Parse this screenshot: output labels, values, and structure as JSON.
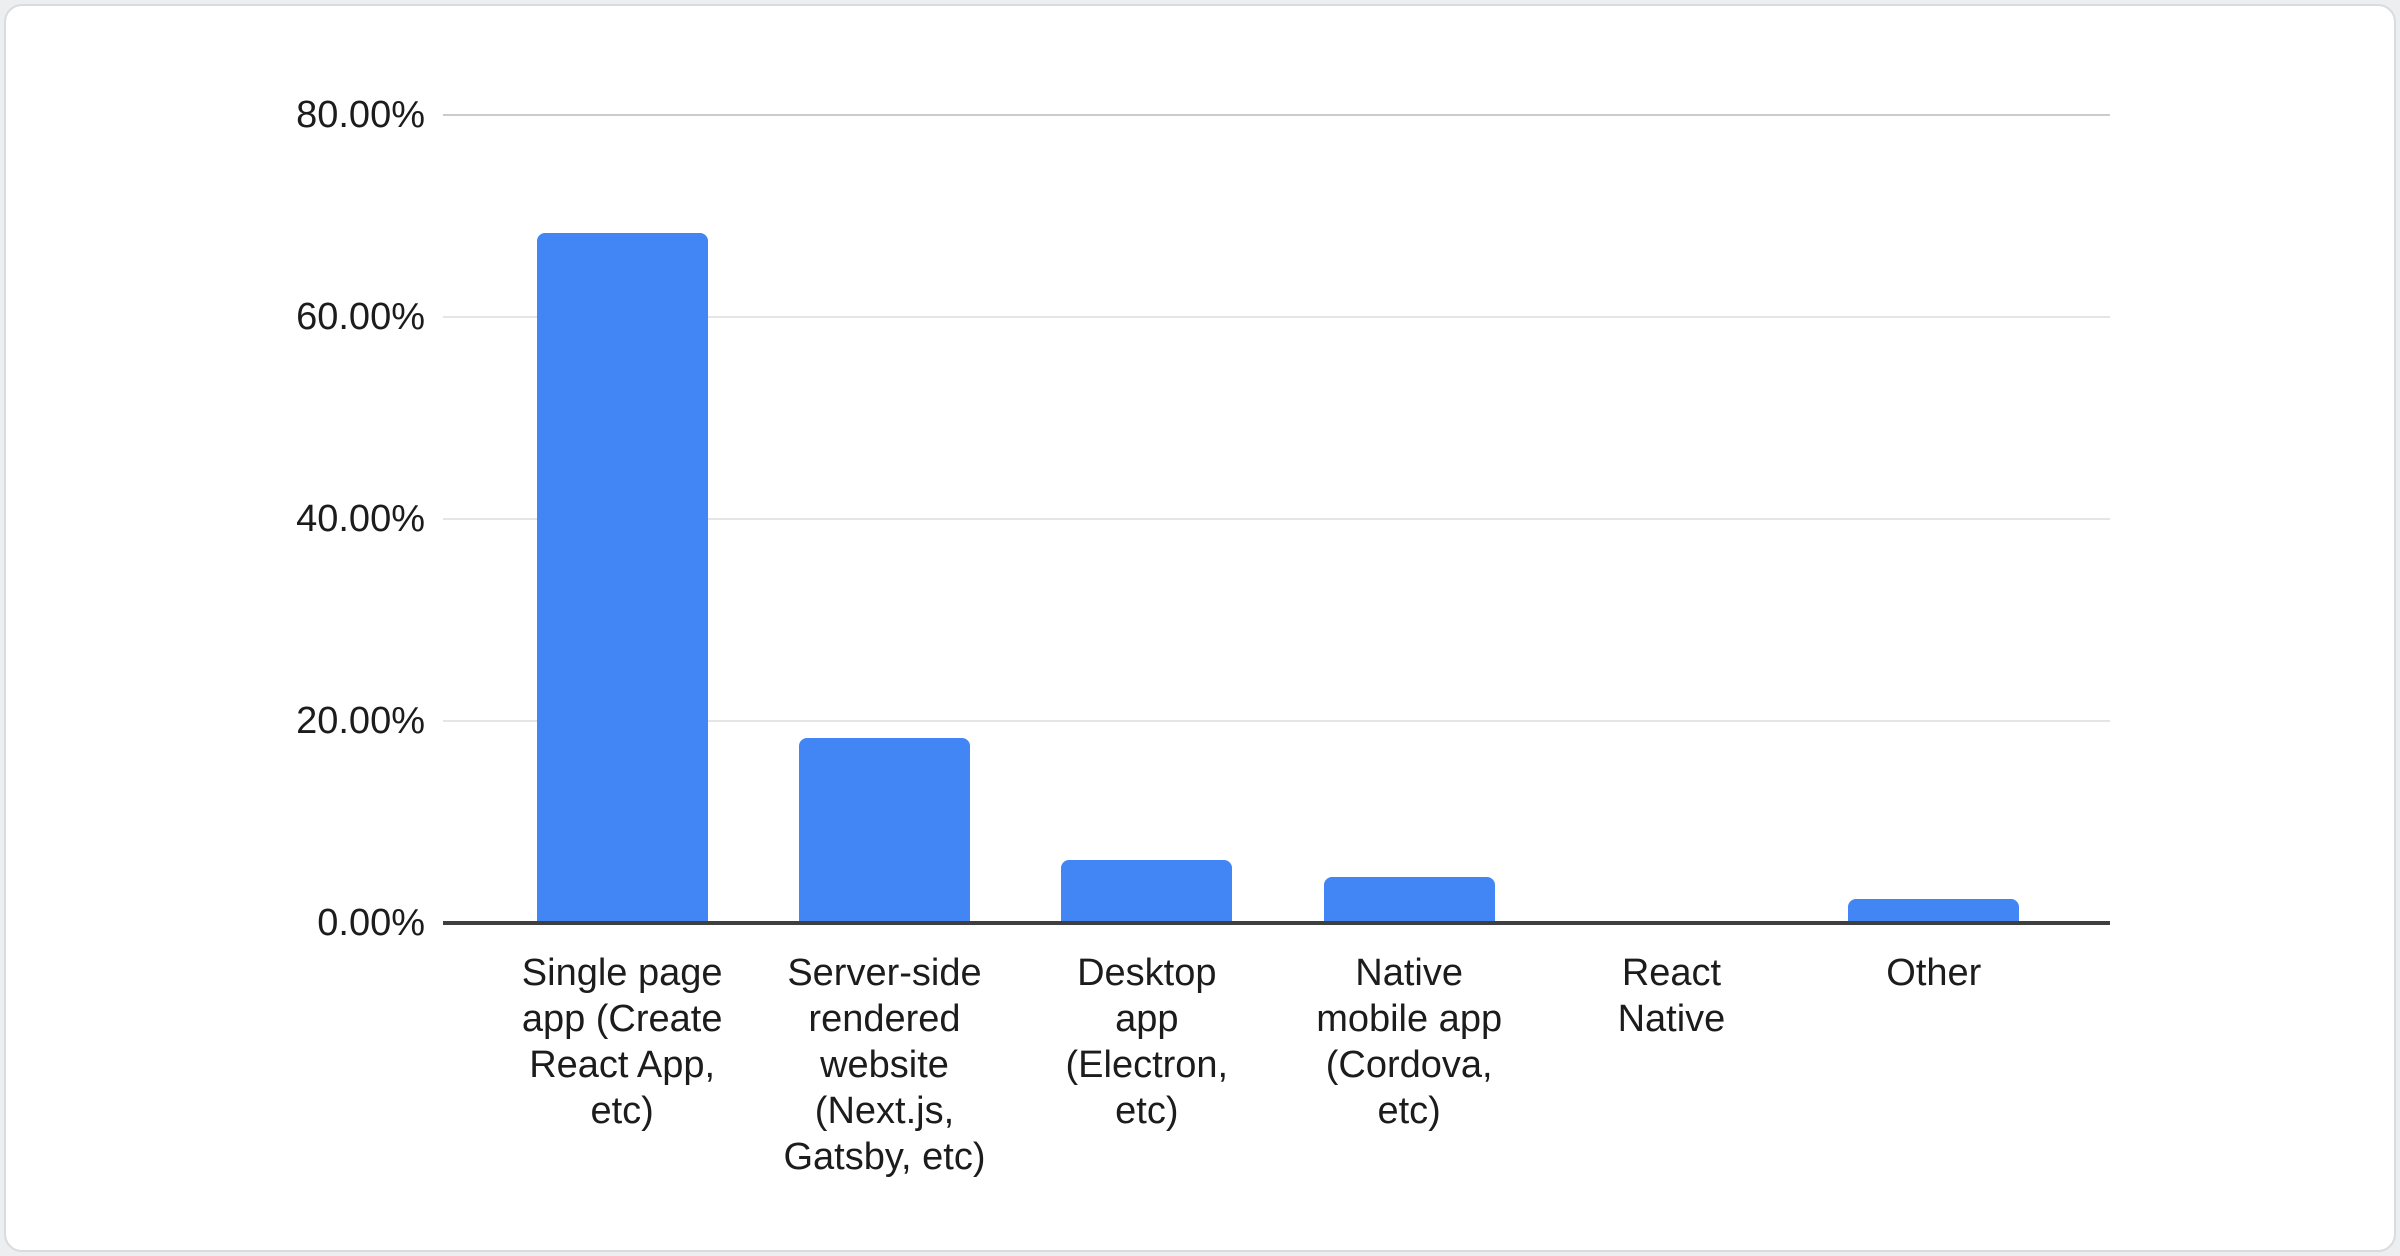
{
  "chart_data": {
    "type": "bar",
    "title": "",
    "xlabel": "",
    "ylabel": "",
    "categories": [
      "Single page app (Create React App, etc)",
      "Server-side rendered website (Next.js, Gatsby, etc)",
      "Desktop app (Electron, etc)",
      "Native mobile app (Cordova, etc)",
      "React Native",
      "Other"
    ],
    "values": [
      68.3,
      18.3,
      6.2,
      4.6,
      0,
      2.4
    ],
    "unit": "%",
    "ylim": [
      0,
      80
    ],
    "ytick_values": [
      0,
      20,
      40,
      60,
      80
    ],
    "ytick_labels": [
      "0.00%",
      "20.00%",
      "40.00%",
      "60.00%",
      "80.00%"
    ],
    "grid": true,
    "legend_position": "none",
    "series_name": "",
    "bar_color": "#4285f4"
  },
  "colors": {
    "bar": "#4285f4",
    "axis_line": "#3f3f3f",
    "gridline": "#e3e5e7",
    "gridline_top": "#c9cccf",
    "text": "#1c1c1c",
    "card_border": "#d9dbde",
    "card_bg": "#ffffff",
    "page_bg": "#eceef0"
  }
}
